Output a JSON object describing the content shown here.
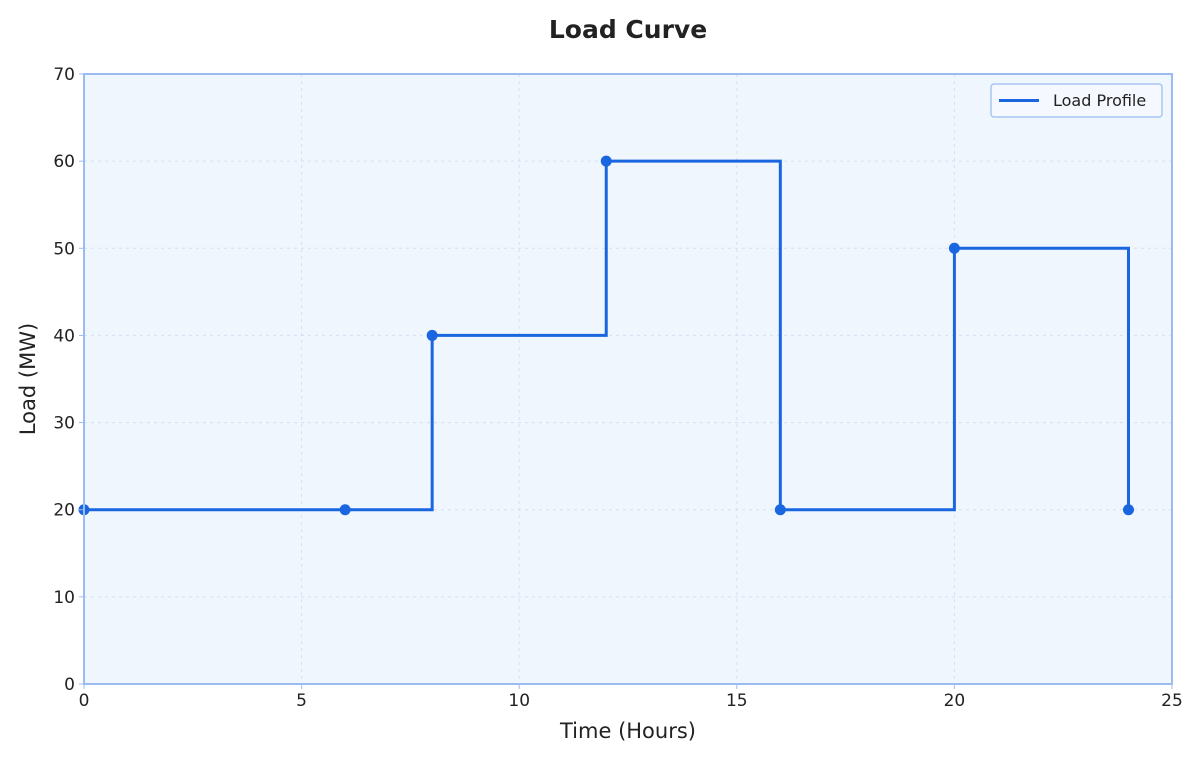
{
  "chart_data": {
    "type": "line",
    "step": "post",
    "title": "Load Curve",
    "xlabel": "Time (Hours)",
    "ylabel": "Load (MW)",
    "xlim": [
      0,
      25
    ],
    "ylim": [
      0,
      70
    ],
    "xticks": [
      0,
      5,
      10,
      15,
      20,
      25
    ],
    "yticks": [
      0,
      10,
      20,
      30,
      40,
      50,
      60,
      70
    ],
    "grid": true,
    "legend": {
      "position": "top-right",
      "entries": [
        "Load Profile"
      ]
    },
    "series": [
      {
        "name": "Load Profile",
        "x": [
          0,
          6,
          8,
          12,
          16,
          20,
          24
        ],
        "y": [
          20,
          20,
          40,
          60,
          20,
          50,
          20
        ]
      }
    ]
  },
  "colors": {
    "series": "#1a66e0",
    "plot_background": "#f0f6fd",
    "frame": "#9bbcf0",
    "legend_border": "#a9c5f2",
    "text": "#222222"
  }
}
